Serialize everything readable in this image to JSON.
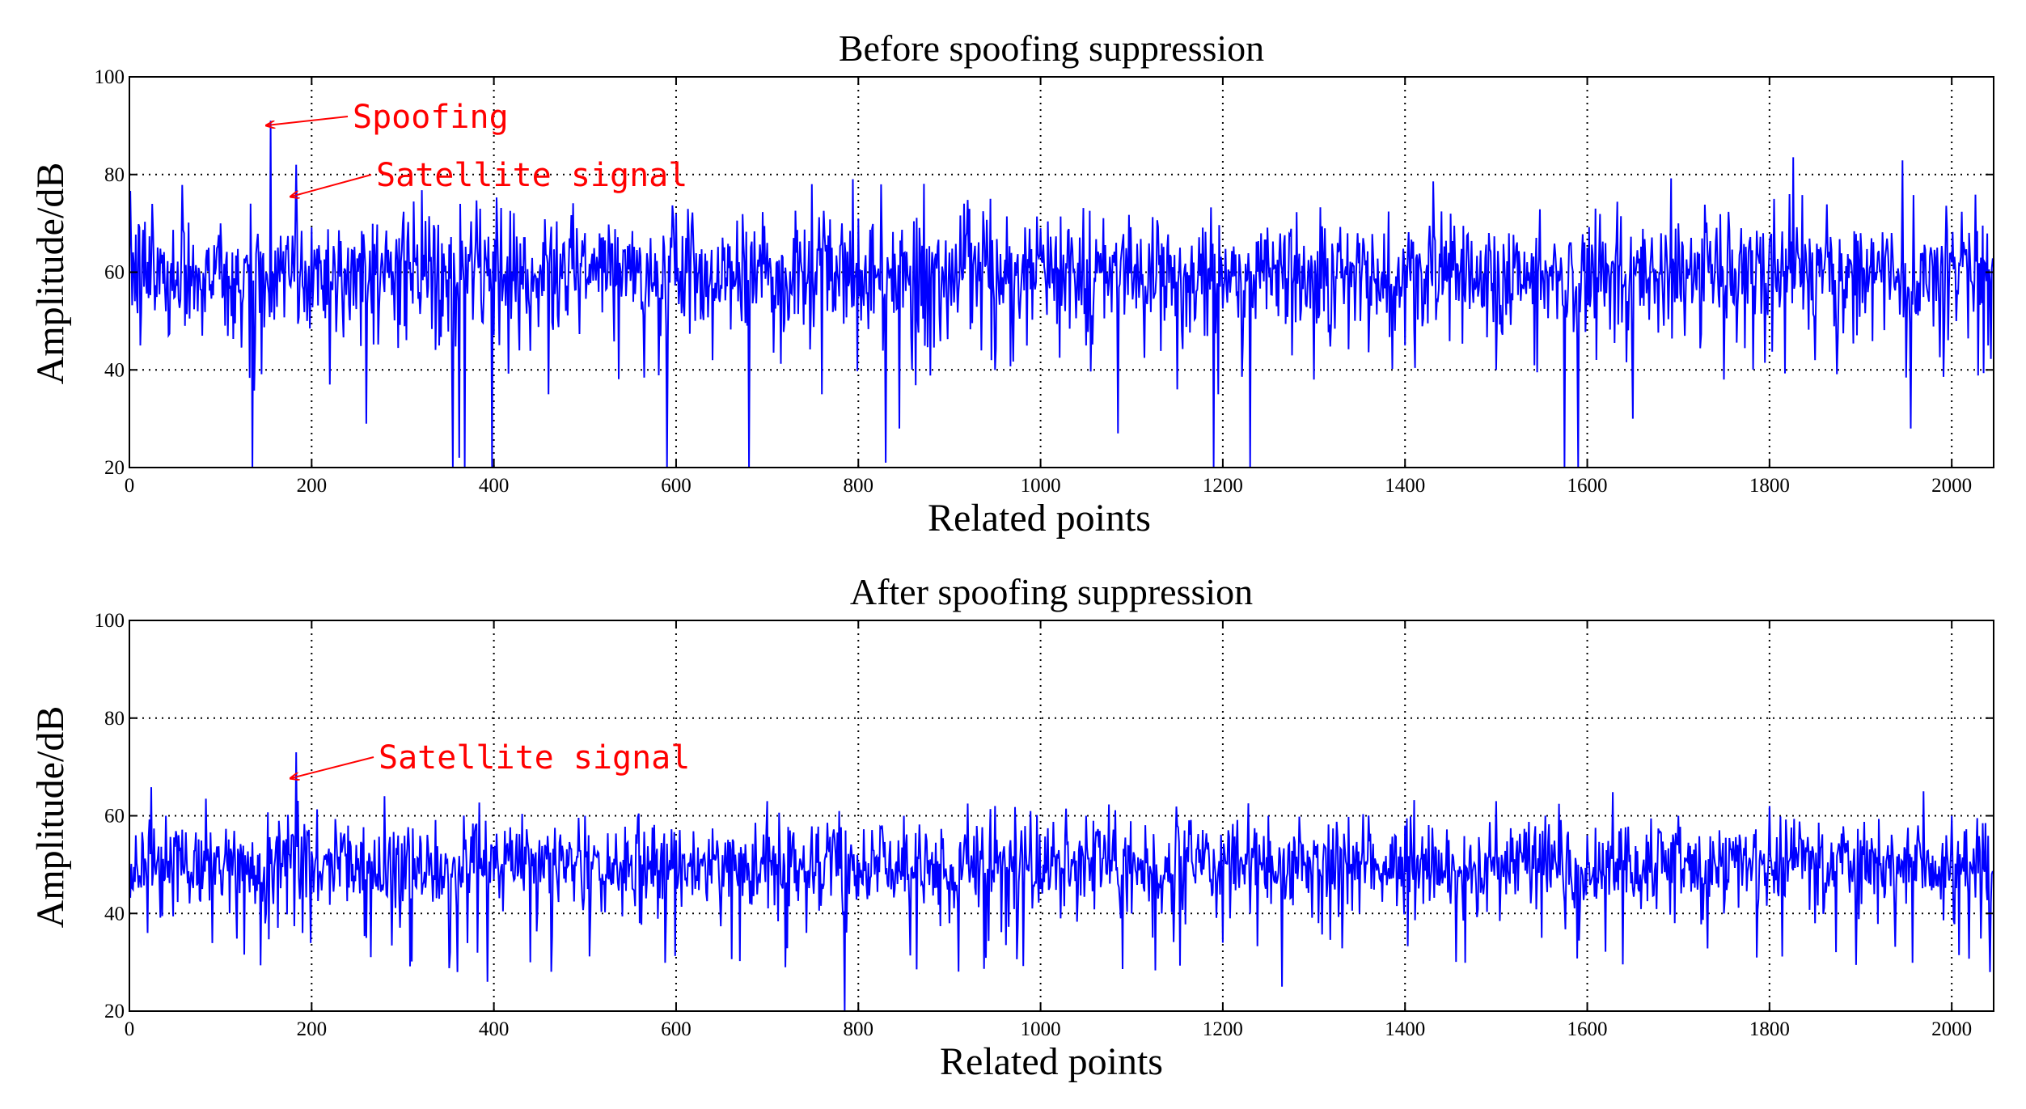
{
  "chart_data": [
    {
      "type": "line",
      "title": "Before spoofing suppression",
      "xlabel": "Related points",
      "ylabel": "Amplitude/dB",
      "xlim": [
        0,
        2046
      ],
      "ylim": [
        20,
        100
      ],
      "xticks": [
        0,
        200,
        400,
        600,
        800,
        1000,
        1200,
        1400,
        1600,
        1800,
        2000
      ],
      "yticks": [
        20,
        40,
        60,
        80,
        100
      ],
      "grid": true,
      "line_color": "#0000ff",
      "noise": {
        "points": 2046,
        "mean": 60,
        "spread": 6,
        "dips_min": 20
      },
      "series": [
        {
          "values_sampled": [
            [
              0,
              63
            ],
            [
              12,
              45
            ],
            [
              25,
              74
            ],
            [
              40,
              52
            ],
            [
              60,
              68
            ],
            [
              80,
              47
            ],
            [
              100,
              70
            ],
            [
              120,
              56
            ],
            [
              135,
              20
            ],
            [
              140,
              66
            ],
            [
              150,
              60
            ],
            [
              155,
              91
            ],
            [
              165,
              58
            ],
            [
              180,
              62
            ],
            [
              183,
              82
            ],
            [
              195,
              50
            ],
            [
              220,
              37
            ],
            [
              240,
              65
            ],
            [
              260,
              29
            ],
            [
              300,
              70
            ],
            [
              340,
              45
            ],
            [
              355,
              20
            ],
            [
              362,
              22
            ],
            [
              368,
              20
            ],
            [
              385,
              73
            ],
            [
              398,
              20
            ],
            [
              420,
              60
            ],
            [
              460,
              35
            ],
            [
              500,
              68
            ],
            [
              540,
              55
            ],
            [
              590,
              20
            ],
            [
              600,
              72
            ],
            [
              640,
              42
            ],
            [
              680,
              20
            ],
            [
              700,
              66
            ],
            [
              760,
              35
            ],
            [
              800,
              71
            ],
            [
              830,
              21
            ],
            [
              845,
              28
            ],
            [
              900,
              64
            ],
            [
              950,
              40
            ],
            [
              1000,
              69
            ],
            [
              1050,
              45
            ],
            [
              1085,
              27
            ],
            [
              1100,
              60
            ],
            [
              1150,
              36
            ],
            [
              1190,
              20
            ],
            [
              1195,
              35
            ],
            [
              1230,
              20
            ],
            [
              1250,
              63
            ],
            [
              1300,
              38
            ],
            [
              1350,
              66
            ],
            [
              1400,
              45
            ],
            [
              1450,
              72
            ],
            [
              1500,
              40
            ],
            [
              1575,
              20
            ],
            [
              1590,
              20
            ],
            [
              1600,
              65
            ],
            [
              1650,
              30
            ],
            [
              1700,
              70
            ],
            [
              1750,
              38
            ],
            [
              1805,
              75
            ],
            [
              1850,
              42
            ],
            [
              1900,
              68
            ],
            [
              1955,
              28
            ],
            [
              2000,
              62
            ],
            [
              2040,
              45
            ]
          ]
        }
      ],
      "annotations": [
        {
          "text": "Spoofing",
          "color": "#ff0000",
          "x": 155,
          "y": 91
        },
        {
          "text": "Satellite signal",
          "color": "#ff0000",
          "x": 183,
          "y": 80
        }
      ]
    },
    {
      "type": "line",
      "title": "After spoofing suppression",
      "xlabel": "Related points",
      "ylabel": "Amplitude/dB",
      "xlim": [
        0,
        2046
      ],
      "ylim": [
        20,
        100
      ],
      "xticks": [
        0,
        200,
        400,
        600,
        800,
        1000,
        1200,
        1400,
        1600,
        1800,
        2000
      ],
      "yticks": [
        20,
        40,
        60,
        80,
        100
      ],
      "grid": true,
      "line_color": "#0000ff",
      "noise": {
        "points": 2046,
        "mean": 50,
        "spread": 4.5,
        "dips_min": 20
      },
      "series": [
        {
          "values_sampled": [
            [
              0,
              50
            ],
            [
              20,
              36
            ],
            [
              40,
              60
            ],
            [
              80,
              45
            ],
            [
              120,
              52
            ],
            [
              150,
              40
            ],
            [
              183,
              73
            ],
            [
              190,
              36
            ],
            [
              240,
              58
            ],
            [
              280,
              64
            ],
            [
              340,
              43
            ],
            [
              360,
              28
            ],
            [
              380,
              58
            ],
            [
              393,
              26
            ],
            [
              420,
              55
            ],
            [
              440,
              30
            ],
            [
              500,
              60
            ],
            [
              560,
              38
            ],
            [
              600,
              55
            ],
            [
              650,
              45
            ],
            [
              700,
              63
            ],
            [
              720,
              29
            ],
            [
              785,
              20
            ],
            [
              790,
              44
            ],
            [
              850,
              60
            ],
            [
              900,
              38
            ],
            [
              950,
              62
            ],
            [
              1000,
              45
            ],
            [
              1050,
              60
            ],
            [
              1100,
              40
            ],
            [
              1150,
              58
            ],
            [
              1200,
              34
            ],
            [
              1250,
              60
            ],
            [
              1265,
              25
            ],
            [
              1300,
              55
            ],
            [
              1350,
              40
            ],
            [
              1400,
              58
            ],
            [
              1450,
              42
            ],
            [
              1500,
              63
            ],
            [
              1550,
              35
            ],
            [
              1600,
              56
            ],
            [
              1650,
              45
            ],
            [
              1700,
              60
            ],
            [
              1750,
              40
            ],
            [
              1800,
              62
            ],
            [
              1850,
              38
            ],
            [
              1900,
              55
            ],
            [
              1950,
              42
            ],
            [
              2000,
              60
            ],
            [
              2042,
              28
            ]
          ]
        }
      ],
      "annotations": [
        {
          "text": "Satellite signal",
          "color": "#ff0000",
          "x": 183,
          "y": 68
        }
      ]
    }
  ]
}
